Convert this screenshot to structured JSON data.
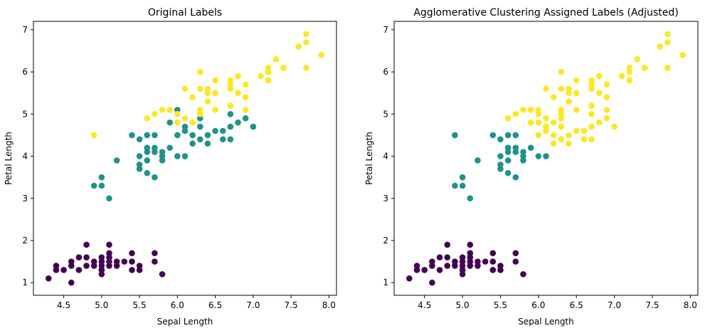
{
  "colors": {
    "class_0": "#440154",
    "class_1": "#21918c",
    "class_2": "#fde725"
  },
  "chart_data": [
    {
      "type": "scatter",
      "title": "Original Labels",
      "xlabel": "Sepal Length",
      "ylabel": "Petal Length",
      "xlim": [
        4.1,
        8.1
      ],
      "ylim": [
        0.7,
        7.2
      ],
      "xticks": [
        4.5,
        5.0,
        5.5,
        6.0,
        6.5,
        7.0,
        7.5,
        8.0
      ],
      "yticks": [
        1,
        2,
        3,
        4,
        5,
        6,
        7
      ],
      "grid": false,
      "legend": "none",
      "series": [
        {
          "color_key": "class_0",
          "points": [
            [
              4.3,
              1.1
            ],
            [
              4.4,
              1.3
            ],
            [
              4.4,
              1.4
            ],
            [
              4.5,
              1.3
            ],
            [
              4.6,
              1.0
            ],
            [
              4.6,
              1.4
            ],
            [
              4.6,
              1.5
            ],
            [
              4.7,
              1.3
            ],
            [
              4.7,
              1.6
            ],
            [
              4.8,
              1.4
            ],
            [
              4.8,
              1.6
            ],
            [
              4.8,
              1.9
            ],
            [
              4.9,
              1.4
            ],
            [
              4.9,
              1.5
            ],
            [
              5.0,
              1.2
            ],
            [
              5.0,
              1.3
            ],
            [
              5.0,
              1.4
            ],
            [
              5.0,
              1.5
            ],
            [
              5.0,
              1.6
            ],
            [
              5.1,
              1.4
            ],
            [
              5.1,
              1.5
            ],
            [
              5.1,
              1.6
            ],
            [
              5.1,
              1.7
            ],
            [
              5.1,
              1.9
            ],
            [
              5.2,
              1.4
            ],
            [
              5.2,
              1.5
            ],
            [
              5.3,
              1.5
            ],
            [
              5.4,
              1.3
            ],
            [
              5.4,
              1.5
            ],
            [
              5.4,
              1.7
            ],
            [
              5.5,
              1.3
            ],
            [
              5.5,
              1.4
            ],
            [
              5.7,
              1.5
            ],
            [
              5.7,
              1.7
            ],
            [
              5.8,
              1.2
            ]
          ]
        },
        {
          "color_key": "class_1",
          "points": [
            [
              4.9,
              3.3
            ],
            [
              5.0,
              3.3
            ],
            [
              5.0,
              3.5
            ],
            [
              5.1,
              3.0
            ],
            [
              5.2,
              3.9
            ],
            [
              5.4,
              4.5
            ],
            [
              5.5,
              3.7
            ],
            [
              5.5,
              3.8
            ],
            [
              5.5,
              4.0
            ],
            [
              5.5,
              4.4
            ],
            [
              5.6,
              3.6
            ],
            [
              5.6,
              3.9
            ],
            [
              5.6,
              4.1
            ],
            [
              5.6,
              4.2
            ],
            [
              5.6,
              4.5
            ],
            [
              5.7,
              3.5
            ],
            [
              5.7,
              4.1
            ],
            [
              5.7,
              4.2
            ],
            [
              5.7,
              4.5
            ],
            [
              5.8,
              3.9
            ],
            [
              5.8,
              4.0
            ],
            [
              5.8,
              4.1
            ],
            [
              5.9,
              4.2
            ],
            [
              5.9,
              4.8
            ],
            [
              6.0,
              4.0
            ],
            [
              6.0,
              4.5
            ],
            [
              6.0,
              5.1
            ],
            [
              6.1,
              4.0
            ],
            [
              6.1,
              4.6
            ],
            [
              6.1,
              4.7
            ],
            [
              6.2,
              4.3
            ],
            [
              6.2,
              4.5
            ],
            [
              6.3,
              4.4
            ],
            [
              6.3,
              4.7
            ],
            [
              6.3,
              4.9
            ],
            [
              6.4,
              4.3
            ],
            [
              6.4,
              4.5
            ],
            [
              6.5,
              4.6
            ],
            [
              6.6,
              4.4
            ],
            [
              6.6,
              4.6
            ],
            [
              6.7,
              4.4
            ],
            [
              6.7,
              4.7
            ],
            [
              6.7,
              5.0
            ],
            [
              6.8,
              4.8
            ],
            [
              6.9,
              4.9
            ],
            [
              7.0,
              4.7
            ]
          ]
        },
        {
          "color_key": "class_2",
          "points": [
            [
              4.9,
              4.5
            ],
            [
              5.6,
              4.9
            ],
            [
              5.7,
              5.0
            ],
            [
              5.8,
              5.1
            ],
            [
              5.9,
              5.1
            ],
            [
              6.0,
              4.8
            ],
            [
              6.0,
              5.0
            ],
            [
              6.1,
              4.9
            ],
            [
              6.1,
              5.6
            ],
            [
              6.2,
              4.8
            ],
            [
              6.2,
              5.4
            ],
            [
              6.3,
              5.0
            ],
            [
              6.3,
              5.1
            ],
            [
              6.3,
              5.6
            ],
            [
              6.3,
              6.0
            ],
            [
              6.4,
              5.3
            ],
            [
              6.4,
              5.5
            ],
            [
              6.4,
              5.6
            ],
            [
              6.5,
              5.1
            ],
            [
              6.5,
              5.5
            ],
            [
              6.5,
              5.8
            ],
            [
              6.7,
              5.2
            ],
            [
              6.7,
              5.6
            ],
            [
              6.7,
              5.7
            ],
            [
              6.7,
              5.8
            ],
            [
              6.8,
              5.5
            ],
            [
              6.8,
              5.9
            ],
            [
              6.9,
              5.1
            ],
            [
              6.9,
              5.4
            ],
            [
              6.9,
              5.7
            ],
            [
              7.1,
              5.9
            ],
            [
              7.2,
              5.8
            ],
            [
              7.2,
              6.0
            ],
            [
              7.2,
              6.1
            ],
            [
              7.3,
              6.3
            ],
            [
              7.4,
              6.1
            ],
            [
              7.6,
              6.6
            ],
            [
              7.7,
              6.1
            ],
            [
              7.7,
              6.7
            ],
            [
              7.7,
              6.9
            ],
            [
              7.9,
              6.4
            ]
          ]
        }
      ]
    },
    {
      "type": "scatter",
      "title": "Agglomerative Clustering Assigned Labels (Adjusted)",
      "xlabel": "Sepal Length",
      "ylabel": "Petal Length",
      "xlim": [
        4.1,
        8.1
      ],
      "ylim": [
        0.7,
        7.2
      ],
      "xticks": [
        4.5,
        5.0,
        5.5,
        6.0,
        6.5,
        7.0,
        7.5,
        8.0
      ],
      "yticks": [
        1,
        2,
        3,
        4,
        5,
        6,
        7
      ],
      "grid": false,
      "legend": "none",
      "series": [
        {
          "color_key": "class_0",
          "points": [
            [
              4.3,
              1.1
            ],
            [
              4.4,
              1.3
            ],
            [
              4.4,
              1.4
            ],
            [
              4.5,
              1.3
            ],
            [
              4.6,
              1.0
            ],
            [
              4.6,
              1.4
            ],
            [
              4.6,
              1.5
            ],
            [
              4.7,
              1.3
            ],
            [
              4.7,
              1.6
            ],
            [
              4.8,
              1.4
            ],
            [
              4.8,
              1.6
            ],
            [
              4.8,
              1.9
            ],
            [
              4.9,
              1.4
            ],
            [
              4.9,
              1.5
            ],
            [
              5.0,
              1.2
            ],
            [
              5.0,
              1.3
            ],
            [
              5.0,
              1.4
            ],
            [
              5.0,
              1.5
            ],
            [
              5.0,
              1.6
            ],
            [
              5.1,
              1.4
            ],
            [
              5.1,
              1.5
            ],
            [
              5.1,
              1.6
            ],
            [
              5.1,
              1.7
            ],
            [
              5.1,
              1.9
            ],
            [
              5.2,
              1.4
            ],
            [
              5.2,
              1.5
            ],
            [
              5.3,
              1.5
            ],
            [
              5.4,
              1.3
            ],
            [
              5.4,
              1.5
            ],
            [
              5.4,
              1.7
            ],
            [
              5.5,
              1.3
            ],
            [
              5.5,
              1.4
            ],
            [
              5.7,
              1.5
            ],
            [
              5.7,
              1.7
            ],
            [
              5.8,
              1.2
            ]
          ]
        },
        {
          "color_key": "class_1",
          "points": [
            [
              4.9,
              3.3
            ],
            [
              4.9,
              4.5
            ],
            [
              5.0,
              3.3
            ],
            [
              5.0,
              3.5
            ],
            [
              5.1,
              3.0
            ],
            [
              5.2,
              3.9
            ],
            [
              5.4,
              4.5
            ],
            [
              5.5,
              3.7
            ],
            [
              5.5,
              3.8
            ],
            [
              5.5,
              4.0
            ],
            [
              5.5,
              4.4
            ],
            [
              5.6,
              3.6
            ],
            [
              5.6,
              3.9
            ],
            [
              5.6,
              4.1
            ],
            [
              5.6,
              4.2
            ],
            [
              5.6,
              4.5
            ],
            [
              5.7,
              3.5
            ],
            [
              5.7,
              4.1
            ],
            [
              5.7,
              4.2
            ],
            [
              5.7,
              4.5
            ],
            [
              5.8,
              3.9
            ],
            [
              5.8,
              4.0
            ],
            [
              5.8,
              4.1
            ],
            [
              5.9,
              4.2
            ],
            [
              6.0,
              4.0
            ],
            [
              6.1,
              4.0
            ]
          ]
        },
        {
          "color_key": "class_2",
          "points": [
            [
              5.6,
              4.9
            ],
            [
              5.7,
              5.0
            ],
            [
              5.8,
              5.1
            ],
            [
              5.9,
              4.8
            ],
            [
              5.9,
              5.1
            ],
            [
              6.0,
              4.5
            ],
            [
              6.0,
              4.8
            ],
            [
              6.0,
              5.0
            ],
            [
              6.0,
              5.1
            ],
            [
              6.1,
              4.6
            ],
            [
              6.1,
              4.7
            ],
            [
              6.1,
              4.9
            ],
            [
              6.1,
              5.6
            ],
            [
              6.2,
              4.3
            ],
            [
              6.2,
              4.5
            ],
            [
              6.2,
              4.8
            ],
            [
              6.2,
              5.4
            ],
            [
              6.3,
              4.4
            ],
            [
              6.3,
              4.7
            ],
            [
              6.3,
              4.9
            ],
            [
              6.3,
              5.0
            ],
            [
              6.3,
              5.1
            ],
            [
              6.3,
              5.6
            ],
            [
              6.3,
              6.0
            ],
            [
              6.4,
              4.3
            ],
            [
              6.4,
              4.5
            ],
            [
              6.4,
              5.3
            ],
            [
              6.4,
              5.5
            ],
            [
              6.4,
              5.6
            ],
            [
              6.5,
              4.6
            ],
            [
              6.5,
              5.1
            ],
            [
              6.5,
              5.5
            ],
            [
              6.5,
              5.8
            ],
            [
              6.6,
              4.4
            ],
            [
              6.6,
              4.6
            ],
            [
              6.7,
              4.4
            ],
            [
              6.7,
              4.7
            ],
            [
              6.7,
              5.0
            ],
            [
              6.7,
              5.2
            ],
            [
              6.7,
              5.6
            ],
            [
              6.7,
              5.7
            ],
            [
              6.7,
              5.8
            ],
            [
              6.8,
              4.8
            ],
            [
              6.8,
              5.5
            ],
            [
              6.8,
              5.9
            ],
            [
              6.9,
              4.9
            ],
            [
              6.9,
              5.1
            ],
            [
              6.9,
              5.4
            ],
            [
              6.9,
              5.7
            ],
            [
              7.0,
              4.7
            ],
            [
              7.1,
              5.9
            ],
            [
              7.2,
              5.8
            ],
            [
              7.2,
              6.0
            ],
            [
              7.2,
              6.1
            ],
            [
              7.3,
              6.3
            ],
            [
              7.4,
              6.1
            ],
            [
              7.6,
              6.6
            ],
            [
              7.7,
              6.1
            ],
            [
              7.7,
              6.7
            ],
            [
              7.7,
              6.9
            ],
            [
              7.9,
              6.4
            ]
          ]
        }
      ]
    }
  ]
}
